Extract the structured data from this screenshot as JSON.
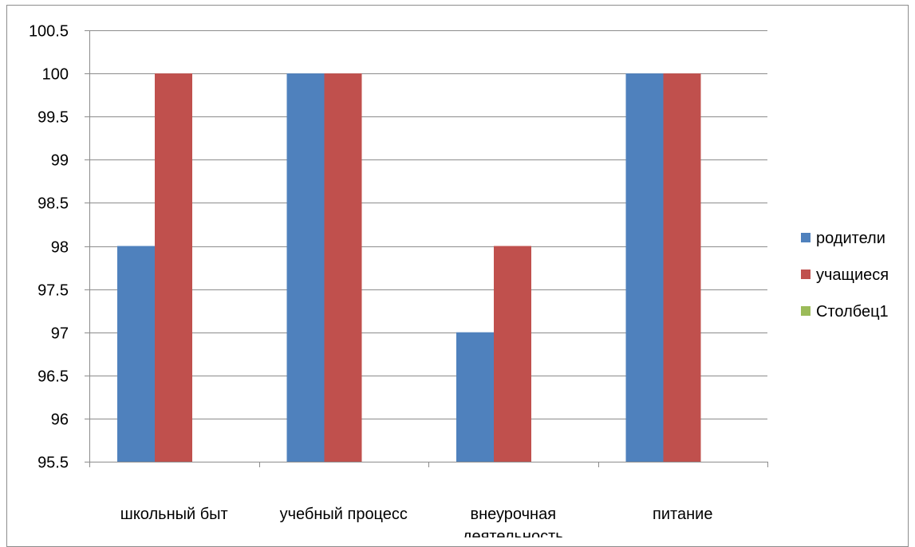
{
  "chart_data": {
    "type": "bar",
    "title": "",
    "xlabel": "",
    "ylabel": "",
    "categories": [
      [
        "школьный быт"
      ],
      [
        "учебный процесс"
      ],
      [
        "внеурочная",
        "деятельность"
      ],
      [
        "питание"
      ]
    ],
    "series": [
      {
        "name": "родители",
        "color": "#4F81BD",
        "values": [
          98,
          100,
          97,
          100
        ]
      },
      {
        "name": "учащиеся",
        "color": "#C0504D",
        "values": [
          100,
          100,
          98,
          100
        ]
      },
      {
        "name": "Столбец1",
        "color": "#9BBB59",
        "values": [
          null,
          null,
          null,
          null
        ]
      }
    ],
    "ylim": [
      95.5,
      100.5
    ],
    "yticks": [
      "95.5",
      "96",
      "96.5",
      "97",
      "97.5",
      "98",
      "98.5",
      "99",
      "99.5",
      "100",
      "100.5"
    ],
    "grid": true,
    "legend_position": "right"
  }
}
